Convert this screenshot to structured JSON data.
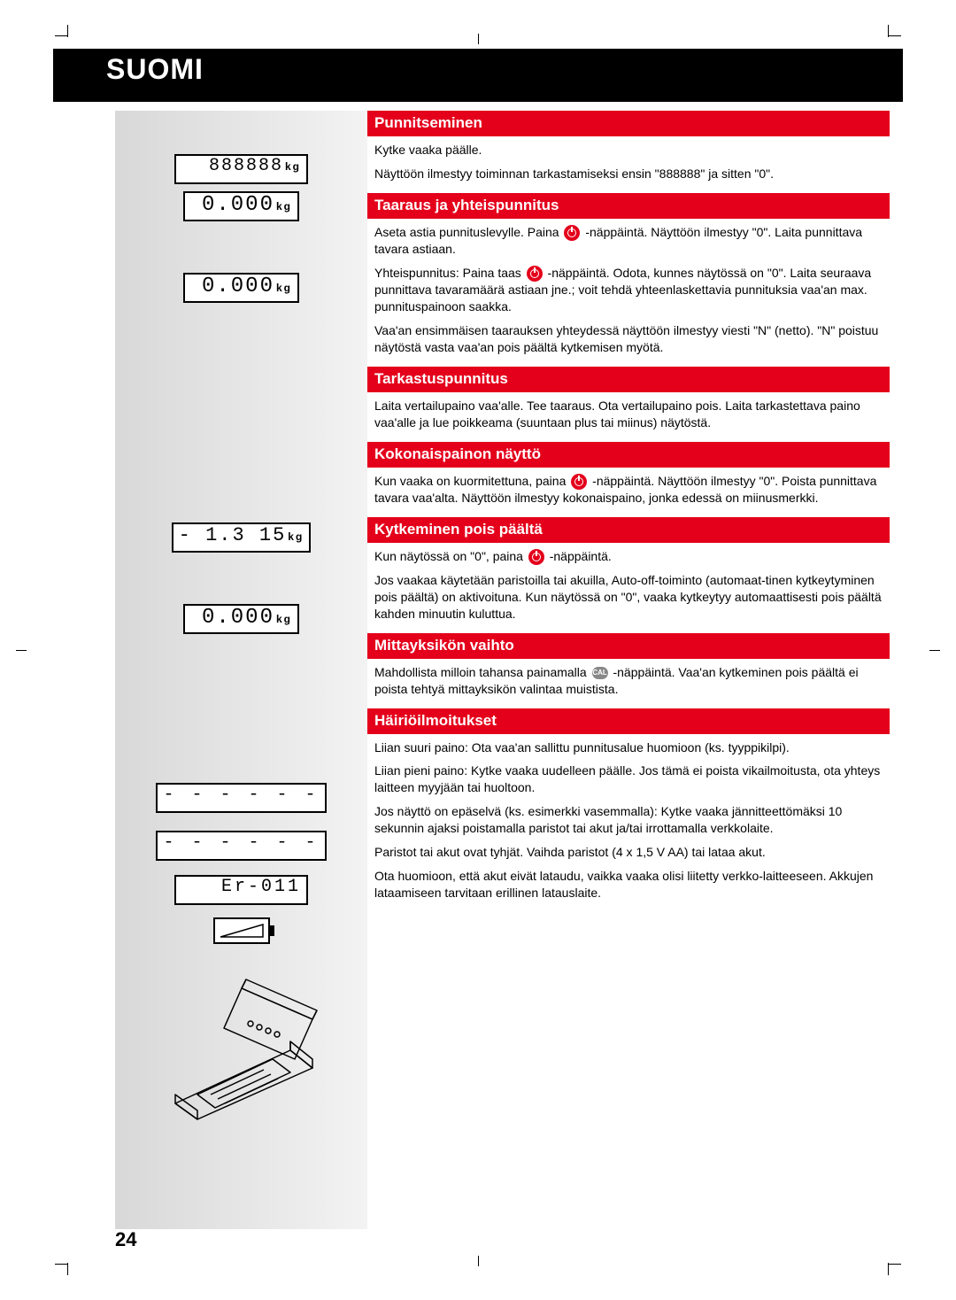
{
  "header": {
    "title": "SUOMI"
  },
  "page_number": "24",
  "colors": {
    "accent_red": "#e4001b",
    "header_black": "#000000",
    "sidebar_gradient_start": "#d8d8d8",
    "sidebar_gradient_end": "#f3f3f3",
    "text": "#000000",
    "white": "#ffffff"
  },
  "sections": [
    {
      "id": "punnitseminen",
      "title": "Punnitseminen",
      "lcd": [
        "888888",
        "0.000"
      ],
      "lcd_unit": "kg",
      "paras": [
        "Kytke vaaka päälle.",
        "Näyttöön ilmestyy toiminnan tarkastamiseksi ensin \"888888\" ja sitten \"0\"."
      ]
    },
    {
      "id": "taaraus",
      "title": "Taaraus ja yhteispunnitus",
      "lcd": [
        "0.000"
      ],
      "lcd_unit": "kg",
      "paras": [
        "Aseta astia punnituslevylle. Paina {ON} -näppäintä. Näyttöön ilmestyy \"0\". Laita punnittava tavara astiaan.",
        "Yhteispunnitus: Paina taas {ON} -näppäintä. Odota, kunnes näytössä on \"0\". Laita seuraava punnittava tavaramäärä astiaan jne.; voit tehdä yhteenlaskettavia punnituksia vaa'an max. punnituspainoon saakka.",
        "Vaa'an ensimmäisen taarauksen yhteydessä näyttöön ilmestyy viesti \"N\" (netto). \"N\" poistuu näytöstä vasta vaa'an pois päältä kytkemisen myötä."
      ]
    },
    {
      "id": "tarkastus",
      "title": "Tarkastuspunnitus",
      "lcd": [],
      "paras": [
        "Laita vertailupaino vaa'alle. Tee taaraus. Ota vertailupaino pois. Laita tarkastettava paino vaa'alle ja lue poikkeama (suuntaan plus tai miinus) näytöstä."
      ]
    },
    {
      "id": "kokonaispaino",
      "title": "Kokonaispainon näyttö",
      "lcd": [
        "- 1.3 15"
      ],
      "lcd_unit": "kg",
      "paras": [
        "Kun vaaka on kuormitettuna, paina {ON} -näppäintä. Näyttöön ilmestyy \"0\". Poista punnittava tavara vaa'alta. Näyttöön ilmestyy kokonaispaino, jonka edessä on miinusmerkki."
      ]
    },
    {
      "id": "kytkeminen",
      "title": "Kytkeminen pois päältä",
      "lcd": [
        "0.000"
      ],
      "lcd_unit": "kg",
      "paras": [
        "Kun näytössä on \"0\", paina {ON} -näppäintä.",
        "Jos vaakaa käytetään paristoilla tai akuilla, Auto-off-toiminto (automaat-tinen kytkeytyminen pois päältä) on aktivoituna. Kun näytössä on \"0\", vaaka kytkeytyy automaattisesti pois päältä kahden minuutin kuluttua."
      ]
    },
    {
      "id": "mittayksikko",
      "title": "Mittayksikön vaihto",
      "lcd": [],
      "paras": [
        "Mahdollista milloin tahansa painamalla {CAL} -näppäintä. Vaa'an kytkeminen pois päältä ei poista tehtyä mittayksikön valintaa muistista."
      ]
    },
    {
      "id": "hairio",
      "title": "Häiriöilmoitukset",
      "lcd_special": [
        "dashes",
        "dashes",
        "error",
        "battery"
      ],
      "error_code": "Er-011",
      "paras": [
        "Liian suuri paino: Ota vaa'an sallittu punnitusalue huomioon (ks. tyyppikilpi).",
        "Liian pieni paino: Kytke vaaka uudelleen päälle. Jos tämä ei poista vikailmoitusta, ota yhteys laitteen myyjään tai huoltoon.",
        "Jos näyttö on epäselvä (ks. esimerkki vasemmalla): Kytke vaaka jännitteettömäksi 10 sekunnin ajaksi poistamalla paristot tai akut ja/tai irrottamalla verkkolaite.",
        "Paristot tai akut ovat tyhjät. Vaihda paristot (4 x 1,5 V AA) tai lataa akut.",
        "Ota huomioon, että akut eivät lataudu, vaikka vaaka olisi liitetty verkko-laitteeseen. Akkujen lataamiseen tarvitaan erillinen latauslaite."
      ]
    }
  ]
}
